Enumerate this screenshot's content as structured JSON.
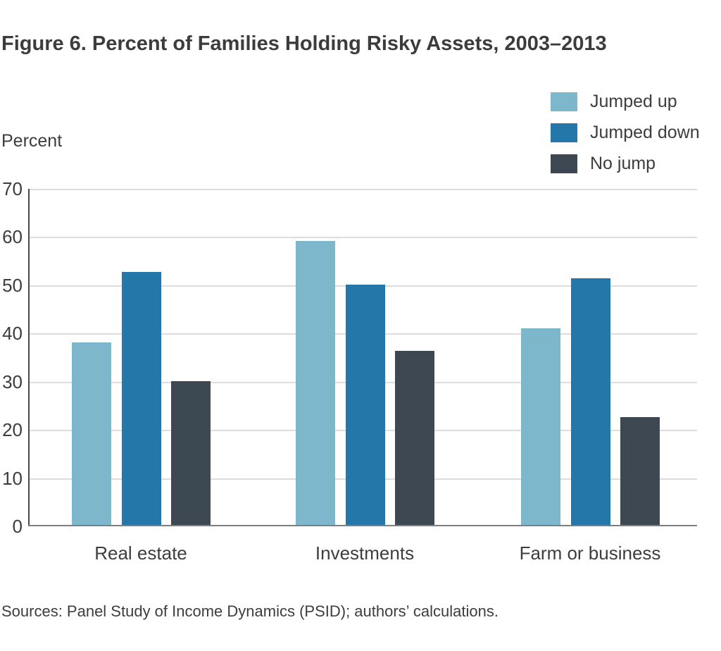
{
  "title": "Figure 6. Percent of Families Holding Risky Assets, 2003–2013",
  "y_axis_title": "Percent",
  "source": "Sources: Panel Study of Income Dynamics (PSID); authors’ calculations.",
  "colors": {
    "jumped_up": "#7db7cb",
    "jumped_down": "#2477a9",
    "no_jump": "#3e4852",
    "gridline": "#dcdcdc",
    "y_axis": "#4a4a4a",
    "x_axis": "#7f7f7f",
    "text": "#3d3d3d"
  },
  "chart_data": {
    "type": "bar",
    "title": "Figure 6. Percent of Families Holding Risky Assets, 2003–2013",
    "xlabel": "",
    "ylabel": "Percent",
    "categories": [
      "Real estate",
      "Investments",
      "Farm or business"
    ],
    "series": [
      {
        "name": "Jumped up",
        "color": "#7db7cb",
        "values": [
          38.0,
          59.1,
          40.9
        ]
      },
      {
        "name": "Jumped down",
        "color": "#2477a9",
        "values": [
          52.6,
          50.0,
          51.3
        ]
      },
      {
        "name": "No jump",
        "color": "#3e4852",
        "values": [
          30.0,
          36.3,
          22.5
        ]
      }
    ],
    "ylim": [
      0,
      70
    ],
    "yticks": [
      0,
      10,
      20,
      30,
      40,
      50,
      60,
      70
    ],
    "grid": true,
    "legend_position": "top-right",
    "legend_labels": [
      "Jumped up",
      "Jumped down",
      "No jump"
    ],
    "source": "Sources: Panel Study of Income Dynamics (PSID); authors’ calculations."
  }
}
